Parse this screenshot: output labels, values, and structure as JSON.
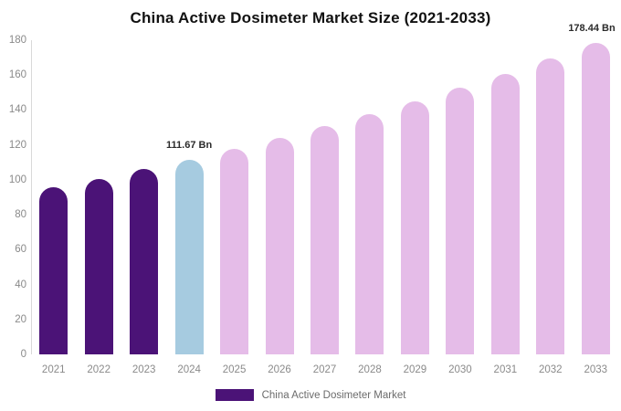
{
  "chart_data": {
    "type": "bar",
    "title": "China Active Dosimeter Market Size (2021-2033)",
    "xlabel": "",
    "ylabel": "",
    "ylim": [
      0,
      180
    ],
    "y_ticks": [
      0,
      20,
      40,
      60,
      80,
      100,
      120,
      140,
      160,
      180
    ],
    "grid": false,
    "legend_position": "bottom",
    "categories": [
      "2021",
      "2022",
      "2023",
      "2024",
      "2025",
      "2026",
      "2027",
      "2028",
      "2029",
      "2030",
      "2031",
      "2032",
      "2033"
    ],
    "series": [
      {
        "name": "China Active Dosimeter Market",
        "unit": "Bn",
        "values": [
          95.5,
          100.6,
          106.0,
          111.67,
          117.6,
          123.9,
          130.6,
          137.6,
          144.9,
          152.7,
          160.9,
          169.5,
          178.44
        ]
      }
    ],
    "bar_colors": [
      "#4B1377",
      "#4B1377",
      "#4B1377",
      "#A6CBE0",
      "#E5BCE8",
      "#E5BCE8",
      "#E5BCE8",
      "#E5BCE8",
      "#E5BCE8",
      "#E5BCE8",
      "#E5BCE8",
      "#E5BCE8",
      "#E5BCE8"
    ],
    "annotations": [
      {
        "category": "2024",
        "label": "111.67 Bn"
      },
      {
        "category": "2033",
        "label": "178.44 Bn"
      }
    ]
  },
  "legend": {
    "label": "China Active Dosimeter Market",
    "swatch_color": "#4B1377"
  },
  "colors": {
    "historical_bar": "#4B1377",
    "highlight_bar": "#A6CBE0",
    "forecast_bar": "#E5BCE8",
    "title_text": "#111111",
    "axis_text": "#8a8a8a",
    "annotation_text": "#2b2b2b",
    "legend_text": "#6b6b6b",
    "axis_line": "#d9d9d9",
    "background": "#ffffff"
  }
}
